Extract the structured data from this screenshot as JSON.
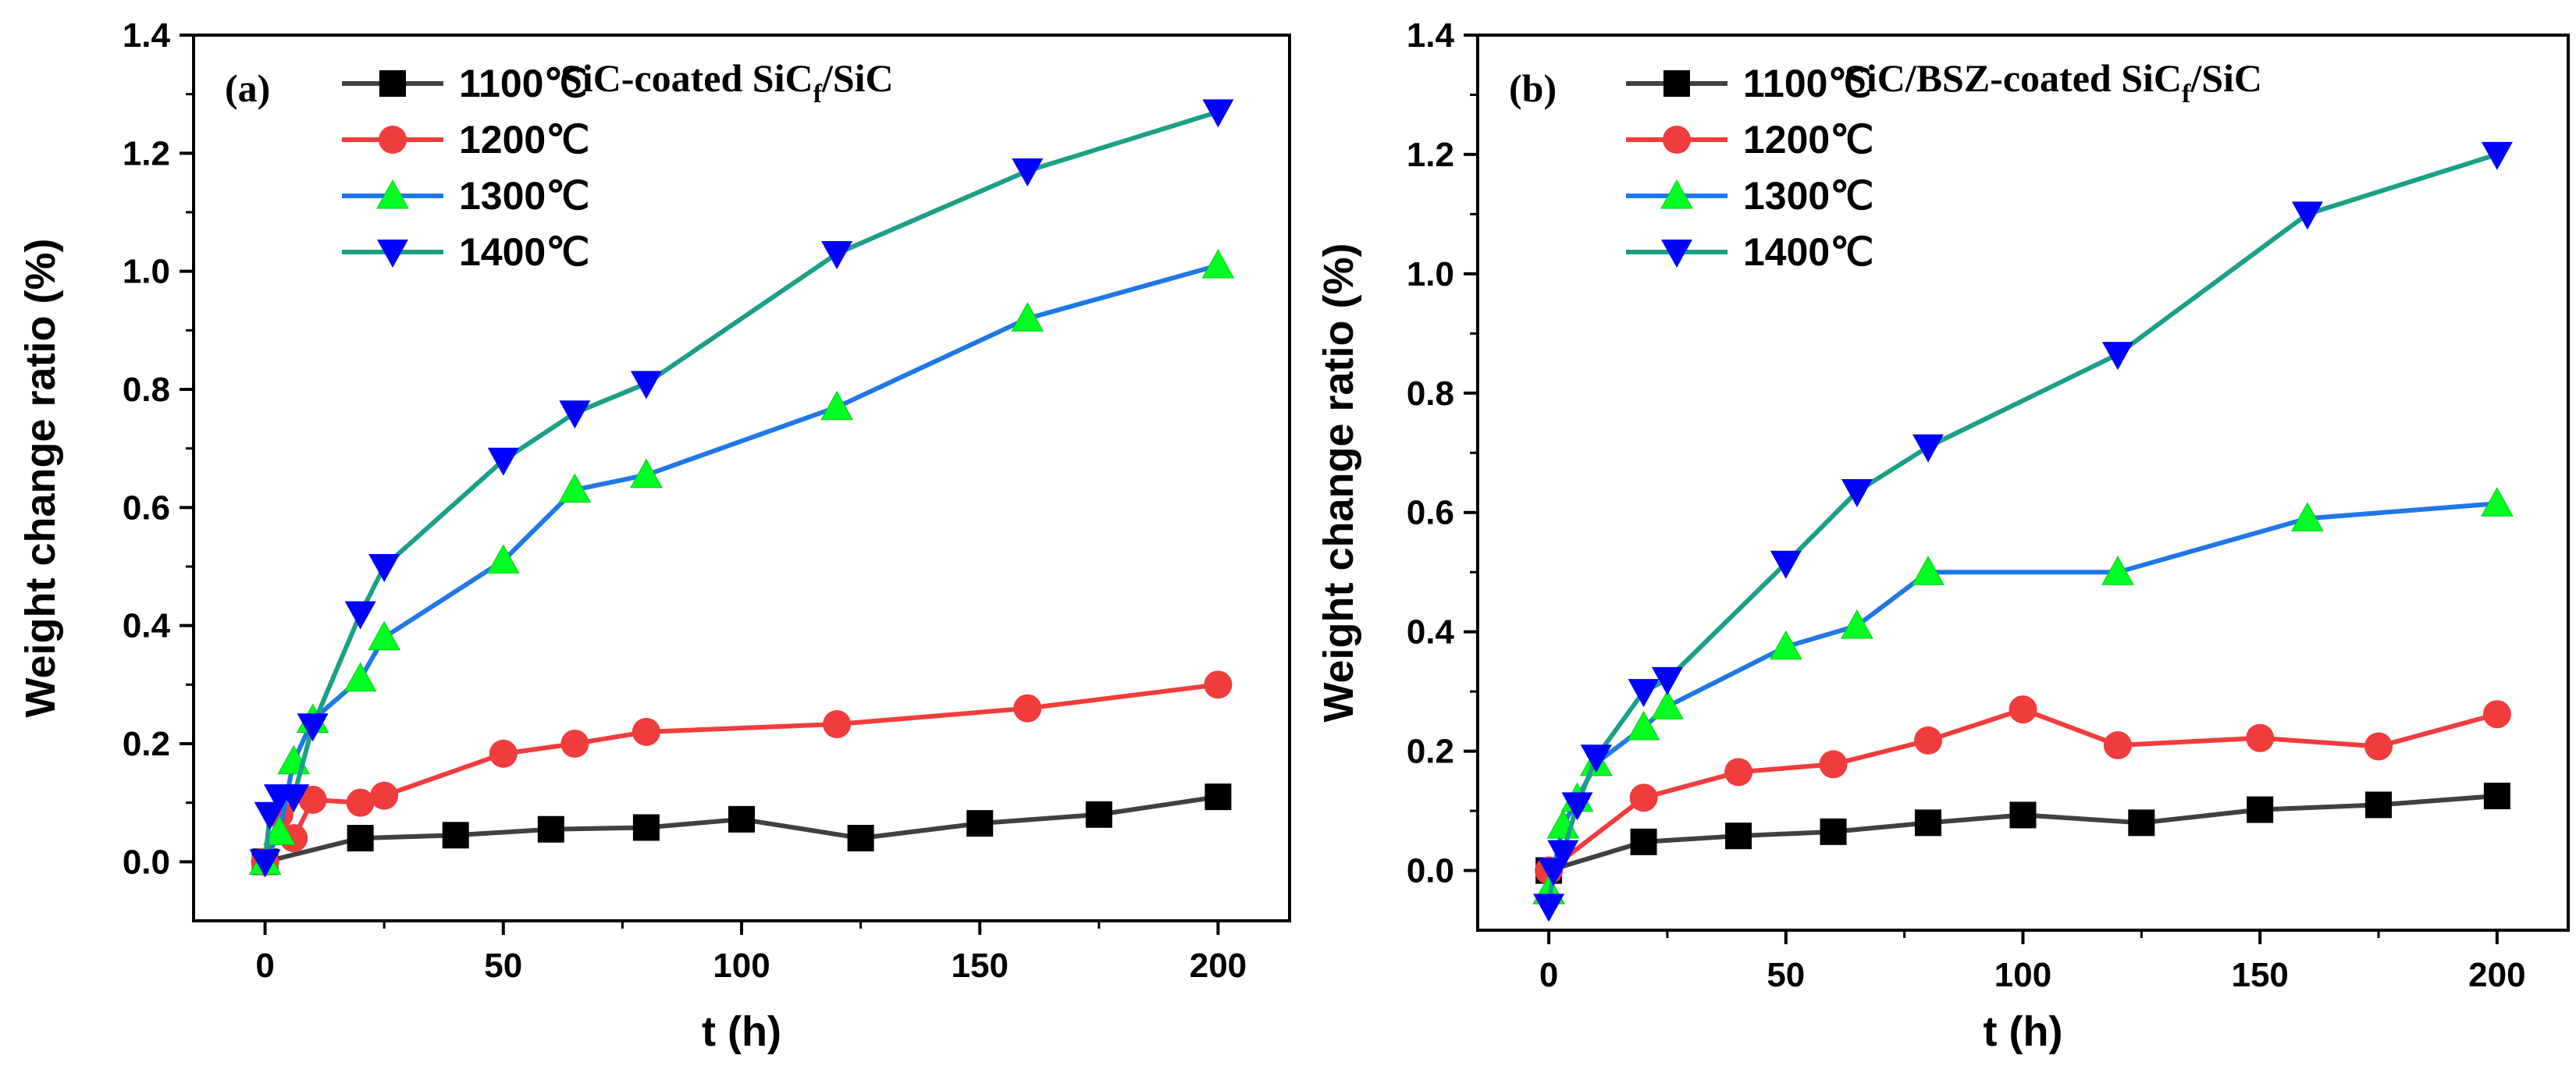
{
  "chart_data": [
    {
      "type": "line",
      "panel_label": "(a)",
      "sample_title": "SiC-coated SiC",
      "sample_sub": "f",
      "sample_tail": "/SiC",
      "xlabel": "t (h)",
      "ylabel": "Weight change ratio (%)",
      "xlim": [
        -15,
        215
      ],
      "ylim": [
        -0.1,
        1.4
      ],
      "xticks": [
        "0",
        "50",
        "100",
        "150",
        "200"
      ],
      "yticks": [
        "0.0",
        "0.2",
        "0.4",
        "0.6",
        "0.8",
        "1.0",
        "1.2",
        "1.4"
      ],
      "legend_position": "top-left",
      "series": [
        {
          "name": "1100℃",
          "color": "#404040",
          "marker": "square",
          "x": [
            0,
            20,
            40,
            60,
            80,
            100,
            125,
            150,
            175,
            200
          ],
          "y": [
            0.0,
            0.04,
            0.045,
            0.055,
            0.058,
            0.072,
            0.04,
            0.065,
            0.08,
            0.11
          ]
        },
        {
          "name": "1200℃",
          "color": "#f03c3c",
          "marker": "circle",
          "x": [
            0,
            3,
            6,
            10,
            20,
            25,
            50,
            65,
            80,
            120,
            160,
            200
          ],
          "y": [
            0.0,
            0.08,
            0.04,
            0.105,
            0.1,
            0.112,
            0.183,
            0.2,
            0.22,
            0.233,
            0.26,
            0.3
          ]
        },
        {
          "name": "1300℃",
          "color": "#1e78e6",
          "marker": "triangle-up",
          "x": [
            0,
            3,
            6,
            10,
            20,
            25,
            50,
            65,
            80,
            120,
            160,
            200
          ],
          "y": [
            0.0,
            0.05,
            0.17,
            0.24,
            0.31,
            0.38,
            0.51,
            0.63,
            0.655,
            0.77,
            0.92,
            1.01
          ]
        },
        {
          "name": "1400℃",
          "color": "#1aa087",
          "marker": "triangle-down",
          "x": [
            0,
            1,
            3,
            6,
            10,
            20,
            25,
            50,
            65,
            80,
            120,
            160,
            200
          ],
          "y": [
            0.0,
            0.08,
            0.11,
            0.11,
            0.23,
            0.42,
            0.5,
            0.68,
            0.76,
            0.81,
            1.03,
            1.17,
            1.27
          ]
        }
      ]
    },
    {
      "type": "line",
      "panel_label": "(b)",
      "sample_title": "SiC/BSZ-coated SiC",
      "sample_sub": "f",
      "sample_tail": "/SiC",
      "xlabel": "t (h)",
      "ylabel": "Weight change ratio (%)",
      "xlim": [
        -15,
        215
      ],
      "ylim": [
        -0.1,
        1.4
      ],
      "xticks": [
        "0",
        "50",
        "100",
        "150",
        "200"
      ],
      "yticks": [
        "0.0",
        "0.2",
        "0.4",
        "0.6",
        "0.8",
        "1.0",
        "1.2",
        "1.4"
      ],
      "legend_position": "top-left",
      "series": [
        {
          "name": "1100℃",
          "color": "#404040",
          "marker": "square",
          "x": [
            0,
            20,
            40,
            60,
            80,
            100,
            125,
            150,
            175,
            200
          ],
          "y": [
            0.0,
            0.048,
            0.058,
            0.065,
            0.08,
            0.093,
            0.08,
            0.102,
            0.11,
            0.125
          ]
        },
        {
          "name": "1200℃",
          "color": "#f03c3c",
          "marker": "circle",
          "x": [
            0,
            20,
            40,
            60,
            80,
            100,
            120,
            150,
            175,
            200
          ],
          "y": [
            0.0,
            0.122,
            0.165,
            0.178,
            0.218,
            0.27,
            0.21,
            0.222,
            0.208,
            0.262
          ]
        },
        {
          "name": "1300℃",
          "color": "#1e78e6",
          "marker": "triangle-up",
          "x": [
            0,
            3,
            6,
            10,
            20,
            25,
            50,
            65,
            80,
            120,
            160,
            200
          ],
          "y": [
            -0.035,
            0.075,
            0.12,
            0.18,
            0.24,
            0.275,
            0.375,
            0.41,
            0.5,
            0.5,
            0.59,
            0.615
          ]
        },
        {
          "name": "1400℃",
          "color": "#1aa087",
          "marker": "triangle-down",
          "x": [
            0,
            1,
            3,
            6,
            10,
            20,
            25,
            50,
            65,
            80,
            120,
            160,
            200
          ],
          "y": [
            -0.06,
            0.0,
            0.03,
            0.11,
            0.19,
            0.3,
            0.32,
            0.515,
            0.635,
            0.71,
            0.865,
            1.1,
            1.2
          ]
        }
      ]
    }
  ]
}
